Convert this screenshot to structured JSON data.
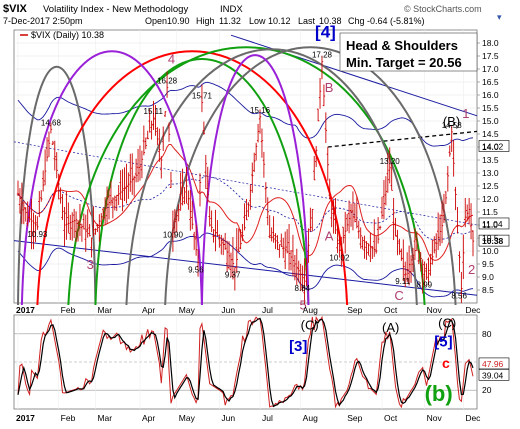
{
  "header": {
    "symbol": "$VIX",
    "name": "Volatility Index - New Methodology",
    "exchange": "INDX",
    "date_time": "7-Dec-2017 2:50pm",
    "open_label": "Open",
    "open": "10.90",
    "high_label": "High",
    "high": "11.32",
    "low_label": "Low",
    "low": "10.12",
    "last_label": "Last",
    "last": "10.38",
    "chg_label": "Chg",
    "chg": "-0.64 (-5.81%)",
    "legend": "$VIX (Daily) 10.38",
    "watermark": "© StockCharts.com"
  },
  "colors": {
    "bar": "#cc0000",
    "ma_red": "#e02020",
    "ma_blue": "#1a1aa0",
    "band": "#1a1aa0",
    "cycle_green": "#10a010",
    "cycle_purple": "#9a20d8",
    "cycle_gray": "#6a6a6a",
    "cycle_red": "#ff0000",
    "wave_label": "#b04070",
    "wave_blue": "#0000cc",
    "osc_line": "#000000",
    "osc_signal": "#d02020"
  },
  "chart_data": [
    {
      "type": "candlestick",
      "title": "$VIX (Daily) 10.38",
      "x_months": [
        "2017",
        "Feb",
        "Mar",
        "Apr",
        "May",
        "Jun",
        "Jul",
        "Aug",
        "Sep",
        "Oct",
        "Nov",
        "Dec"
      ],
      "ylim": [
        8.0,
        18.5
      ],
      "y_ticks": [
        "8.5",
        "9.0",
        "9.5",
        "10.0",
        "10.5",
        "11.0",
        "11.5",
        "12.0",
        "12.5",
        "13.0",
        "13.5",
        "14.0",
        "14.5",
        "15.0",
        "15.5",
        "16.0",
        "16.5",
        "17.0",
        "17.5",
        "18.0"
      ],
      "price_labels": [
        {
          "text": "10.93",
          "x": 10,
          "y": 10.93
        },
        {
          "text": "14.68",
          "x": 17,
          "y": 14.68
        },
        {
          "text": "15.11",
          "x": 70,
          "y": 15.11
        },
        {
          "text": "16.28",
          "x": 77,
          "y": 16.28
        },
        {
          "text": "10.90",
          "x": 80,
          "y": 10.9
        },
        {
          "text": "15.71",
          "x": 95,
          "y": 15.71
        },
        {
          "text": "9.56",
          "x": 93,
          "y": 9.56
        },
        {
          "text": "9.37",
          "x": 112,
          "y": 9.37
        },
        {
          "text": "15.16",
          "x": 125,
          "y": 15.16
        },
        {
          "text": "8.84",
          "x": 148,
          "y": 8.84
        },
        {
          "text": "17.28",
          "x": 157,
          "y": 17.28
        },
        {
          "text": "10.02",
          "x": 166,
          "y": 10.02
        },
        {
          "text": "13.20",
          "x": 192,
          "y": 13.2
        },
        {
          "text": "9.11",
          "x": 200,
          "y": 9.11
        },
        {
          "text": "8.99",
          "x": 211,
          "y": 8.99
        },
        {
          "text": "14.58",
          "x": 224,
          "y": 14.58
        },
        {
          "text": "8.56",
          "x": 229,
          "y": 8.56
        }
      ],
      "value_tags": [
        {
          "text": "14.02",
          "y": 14.02
        },
        {
          "text": "11.04",
          "y": 11.04
        },
        {
          "text": "10.38",
          "y": 10.38
        }
      ],
      "wave_labels": [
        {
          "text": "3",
          "x": 38,
          "y": 9.5
        },
        {
          "text": "4",
          "x": 80,
          "y": 17.4
        },
        {
          "text": "[4]",
          "x": 156,
          "y": 18.4
        },
        {
          "text": "B",
          "x": 161,
          "y": 16.3
        },
        {
          "text": "A",
          "x": 161,
          "y": 10.6
        },
        {
          "text": "5",
          "x": 148,
          "y": 7.95
        },
        {
          "text": "C",
          "x": 197,
          "y": 8.3
        },
        {
          "text": "(B)",
          "x": 222,
          "y": 15.0
        },
        {
          "text": "1",
          "x": 232,
          "y": 15.3
        },
        {
          "text": "2",
          "x": 235,
          "y": 9.3
        }
      ],
      "annotation": "Head & Shoulders\nMin. Target = 20.56"
    },
    {
      "type": "line",
      "x_months": [
        "2017",
        "Feb",
        "Mar",
        "Apr",
        "May",
        "Jun",
        "Jul",
        "Aug",
        "Sep",
        "Oct",
        "Nov",
        "Dec"
      ],
      "ylim": [
        0,
        100
      ],
      "y_ticks": [
        "20",
        "50",
        "80"
      ],
      "latest_values": [
        "47.96",
        "39.04"
      ],
      "wave_labels": [
        "(C)",
        "(A)",
        "(C)",
        "[3]",
        "[5]",
        "c",
        "(b)"
      ]
    }
  ]
}
